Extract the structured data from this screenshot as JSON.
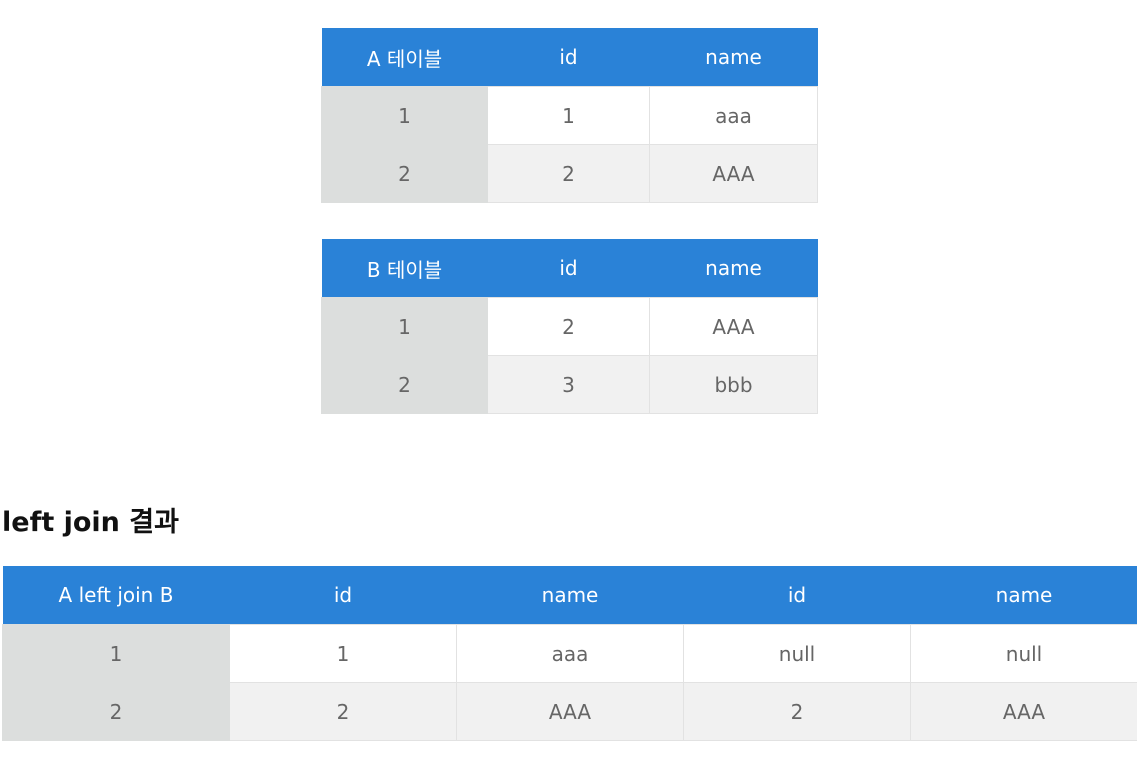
{
  "table_a": {
    "headers": [
      "A 테이블",
      "id",
      "name"
    ],
    "rows": [
      [
        "1",
        "1",
        "aaa"
      ],
      [
        "2",
        "2",
        "AAA"
      ]
    ]
  },
  "table_b": {
    "headers": [
      "B 테이블",
      "id",
      "name"
    ],
    "rows": [
      [
        "1",
        "2",
        "AAA"
      ],
      [
        "2",
        "3",
        "bbb"
      ]
    ]
  },
  "result": {
    "heading": "left join 결과",
    "headers": [
      "A left join B",
      "id",
      "name",
      "id",
      "name"
    ],
    "rows": [
      [
        "1",
        "1",
        "aaa",
        "null",
        "null"
      ],
      [
        "2",
        "2",
        "AAA",
        "2",
        "AAA"
      ]
    ]
  },
  "colors": {
    "header_bg": "#2a82d7",
    "key_col_bg": "#dcdedd",
    "even_row_bg": "#f1f1f1"
  }
}
